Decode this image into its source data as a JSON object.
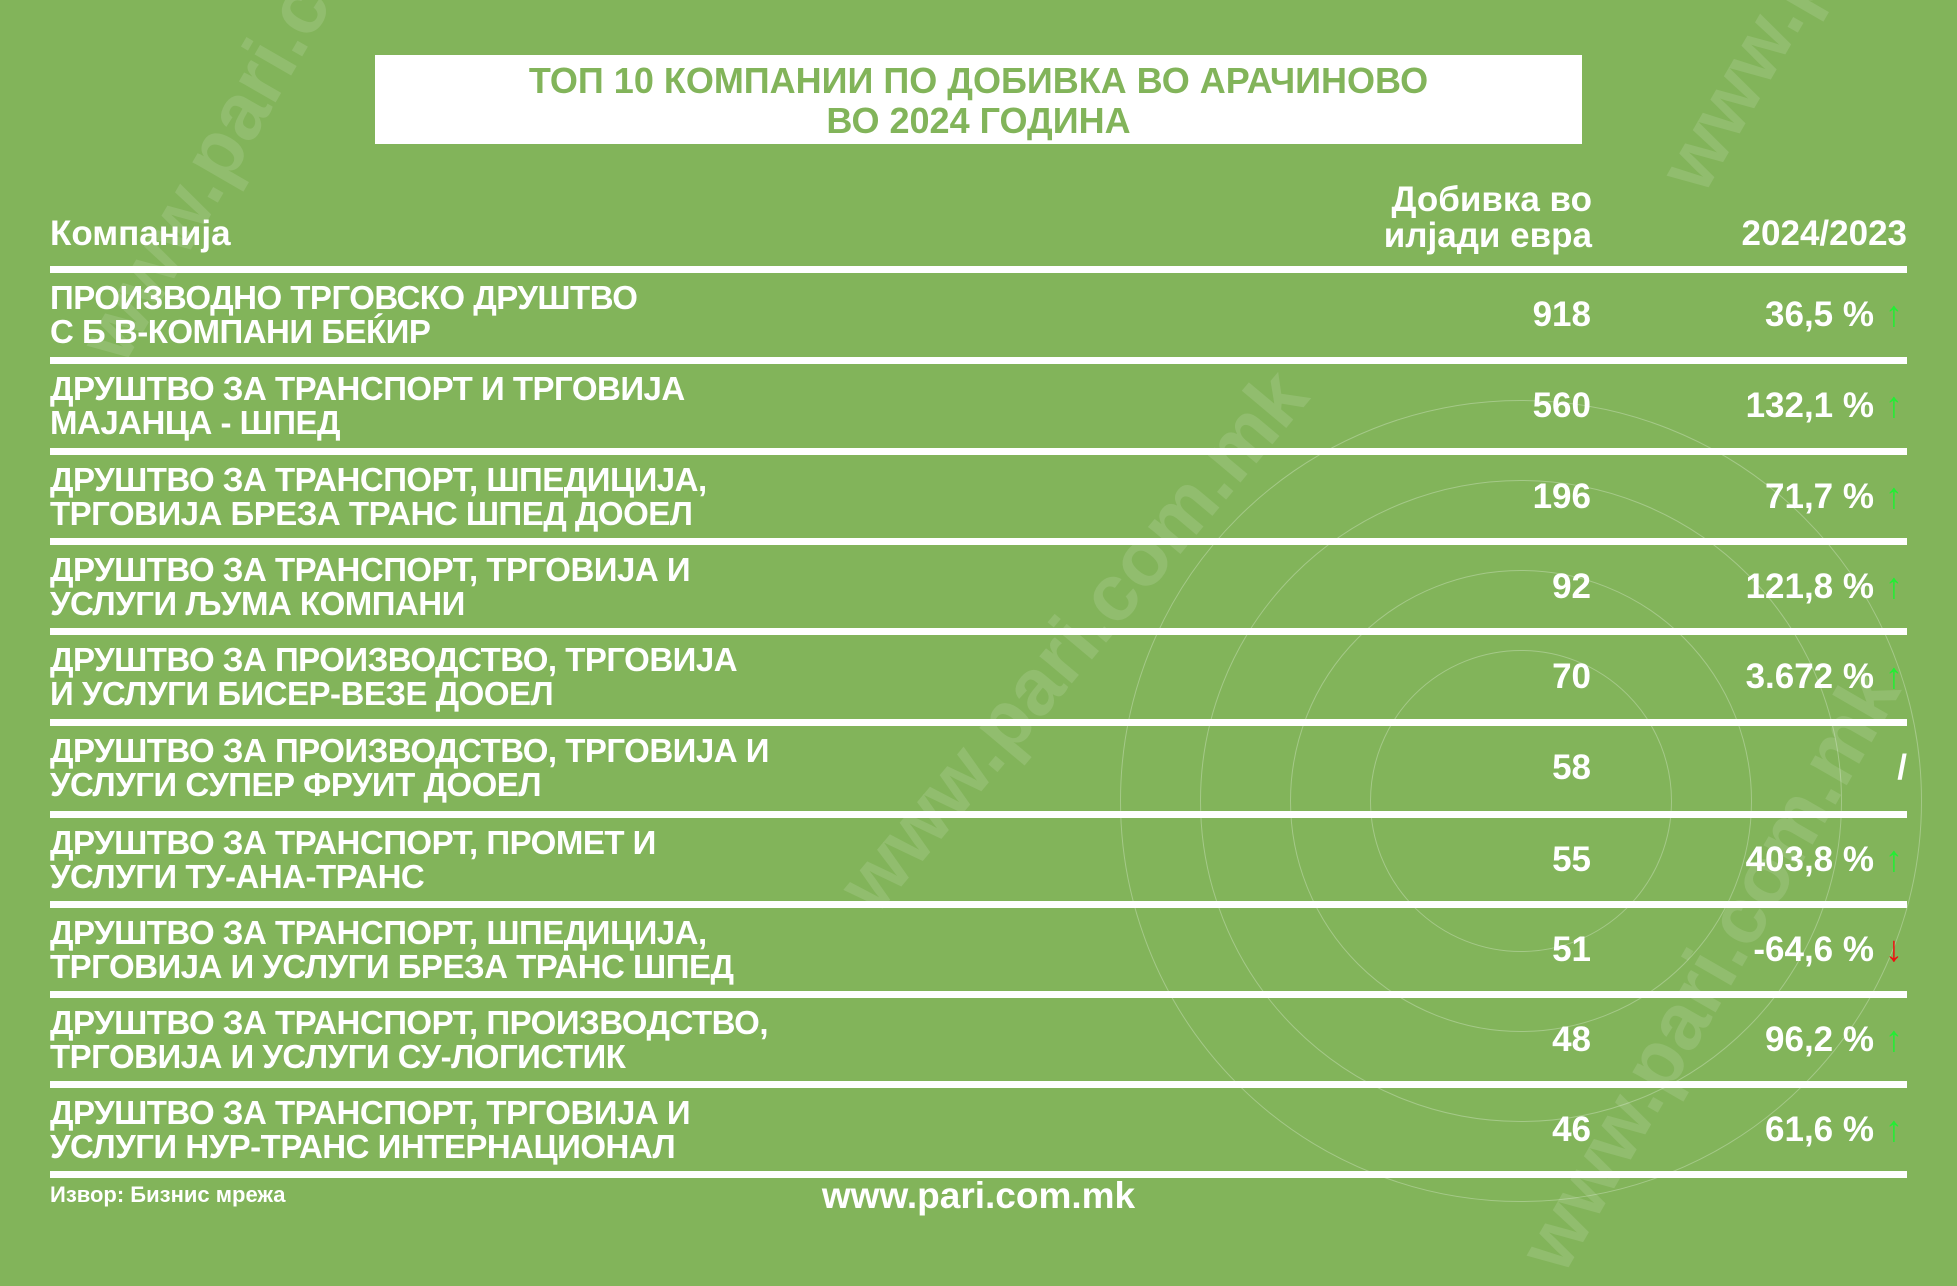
{
  "title": {
    "line1": "ТОП 10 КОМПАНИИ ПО ДОБИВКА ВО АРАЧИНОВО",
    "line2": "ВО 2024 ГОДИНА"
  },
  "columns": {
    "company": "Компанија",
    "profit_line1": "Добивка во",
    "profit_line2": "илјади евра",
    "change": "2024/2023"
  },
  "colors": {
    "background": "#82b45a",
    "up": "#22ee33",
    "down": "#ee1111"
  },
  "rows": [
    {
      "l1": "ПРОИЗВОДНО ТРГОВСКО ДРУШТВО",
      "l2": "С Б В-КОМПАНИ БЕЌИР",
      "profit": "918",
      "change": "36,5 %",
      "trend": "up"
    },
    {
      "l1": "ДРУШТВО ЗА ТРАНСПОРТ И ТРГОВИЈА",
      "l2": "МАЈАНЦА - ШПЕД",
      "profit": "560",
      "change": "132,1 %",
      "trend": "up"
    },
    {
      "l1": "ДРУШТВО ЗА ТРАНСПОРТ, ШПЕДИЦИЈА,",
      "l2": "ТРГОВИЈА БРЕЗА ТРАНС ШПЕД ДООЕЛ",
      "profit": "196",
      "change": "71,7 %",
      "trend": "up"
    },
    {
      "l1": "ДРУШТВО ЗА ТРАНСПОРТ, ТРГОВИЈА И",
      "l2": "УСЛУГИ ЉУМА КОМПАНИ",
      "profit": "92",
      "change": "121,8 %",
      "trend": "up"
    },
    {
      "l1": "ДРУШТВО ЗА ПРОИЗВОДСТВО, ТРГОВИЈА",
      "l2": "И УСЛУГИ БИСЕР-ВЕЗЕ ДООЕЛ",
      "profit": "70",
      "change": "3.672 %",
      "trend": "up"
    },
    {
      "l1": "ДРУШТВО ЗА ПРОИЗВОДСТВО, ТРГОВИЈА И",
      "l2": "УСЛУГИ СУПЕР ФРУИТ ДООЕЛ",
      "profit": "58",
      "change": "/",
      "trend": ""
    },
    {
      "l1": "ДРУШТВО ЗА ТРАНСПОРТ, ПРОМЕТ И",
      "l2": "УСЛУГИ ТУ-АНА-ТРАНС",
      "profit": "55",
      "change": "403,8 %",
      "trend": "up"
    },
    {
      "l1": "ДРУШТВО ЗА ТРАНСПОРТ, ШПЕДИЦИЈА,",
      "l2": "ТРГОВИЈА И УСЛУГИ БРЕЗА ТРАНС ШПЕД",
      "profit": "51",
      "change": "-64,6 %",
      "trend": "down"
    },
    {
      "l1": "ДРУШТВО ЗА ТРАНСПОРТ, ПРОИЗВОДСТВО,",
      "l2": "ТРГОВИЈА И УСЛУГИ СУ-ЛОГИСТИК",
      "profit": "48",
      "change": "96,2 %",
      "trend": "up"
    },
    {
      "l1": "ДРУШТВО ЗА ТРАНСПОРТ, ТРГОВИЈА И",
      "l2": "УСЛУГИ НУР-ТРАНС ИНТЕРНАЦИОНАЛ",
      "profit": "46",
      "change": "61,6 %",
      "trend": "up"
    }
  ],
  "footer": {
    "source": "Извор: Бизнис мрежа",
    "website": "www.pari.com.mk"
  },
  "watermark": "www.pari.com.mk",
  "arrows": {
    "up": "↑",
    "down": "↓"
  }
}
